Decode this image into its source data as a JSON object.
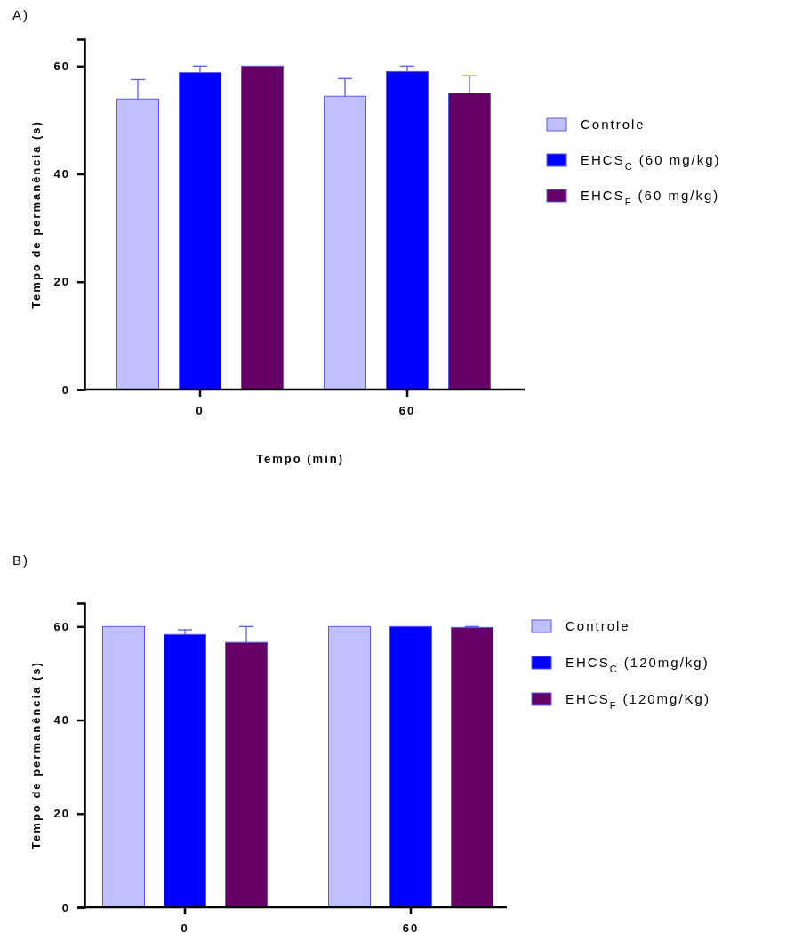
{
  "chart_data": [
    {
      "type": "bar",
      "title": "A)",
      "xlabel": "Tempo (min)",
      "ylabel": "Tempo de permanência (s)",
      "categories": [
        "0",
        "60"
      ],
      "ylim": [
        0,
        65
      ],
      "yticks": [
        0,
        20,
        40,
        60
      ],
      "legend": "right",
      "grid": false,
      "series": [
        {
          "name": "Controle",
          "color": "#c0c0ff",
          "values": [
            53.9,
            54.4
          ],
          "errors": [
            [
              53.9,
              57.5
            ],
            [
              54.4,
              57.7
            ]
          ]
        },
        {
          "name": "EHCS$_{C}$ (60 mg/kg)",
          "color": "#0000ff",
          "values": [
            58.8,
            59
          ],
          "errors": [
            [
              58.8,
              60
            ],
            [
              59,
              60
            ]
          ]
        },
        {
          "name": "EHCS$_{F}$ (60 mg/kg)",
          "color": "#660066",
          "values": [
            60,
            55
          ],
          "errors": [
            null,
            [
              55,
              58.2
            ]
          ]
        }
      ]
    },
    {
      "type": "bar",
      "title": "B)",
      "ylabel": "Tempo de permanência (s)",
      "categories": [
        "0",
        "60"
      ],
      "ylim": [
        0,
        65
      ],
      "yticks": [
        0,
        20,
        40,
        60
      ],
      "legend": "right",
      "grid": false,
      "series": [
        {
          "name": "Controle",
          "color": "#c0c0ff",
          "values": [
            60,
            60
          ],
          "errors": [
            null,
            null
          ]
        },
        {
          "name": "EHCS$_{C}$ (120mg/kg)",
          "color": "#0000ff",
          "values": [
            58.3,
            60
          ],
          "errors": [
            [
              58.3,
              59.3
            ],
            null
          ]
        },
        {
          "name": "EHCS$_{F}$ (120mg/Kg)",
          "color": "#660066",
          "values": [
            56.6,
            59.8
          ],
          "errors": [
            [
              56.6,
              60
            ],
            [
              59.8,
              60
            ]
          ]
        }
      ]
    }
  ]
}
